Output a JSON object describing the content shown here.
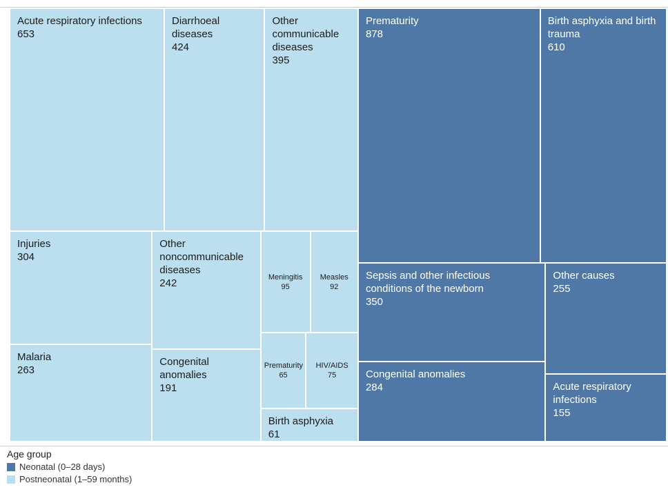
{
  "chart_data": {
    "type": "treemap",
    "legend_title": "Age group",
    "series": [
      {
        "name": "Neonatal (0–28 days)",
        "color": "#4f78a6",
        "text_color": "#ffffff",
        "categories": [
          "Prematurity",
          "Birth asphyxia and birth trauma",
          "Sepsis and other infectious conditions of the newborn",
          "Other causes",
          "Congenital anomalies",
          "Acute respiratory infections"
        ],
        "values": [
          878,
          610,
          350,
          255,
          284,
          155
        ]
      },
      {
        "name": "Postneonatal (1–59 months)",
        "color": "#bcdff0",
        "text_color": "#1a1a1a",
        "categories": [
          "Acute respiratory infections",
          "Diarrhoeal diseases",
          "Other communicable diseases",
          "Injuries",
          "Malaria",
          "Other noncommunicable diseases",
          "Congenital anomalies",
          "Meningitis",
          "Measles",
          "Prematurity",
          "HIV/AIDS",
          "Birth asphyxia"
        ],
        "values": [
          653,
          424,
          395,
          304,
          263,
          242,
          191,
          95,
          92,
          65,
          75,
          61
        ]
      }
    ]
  }
}
